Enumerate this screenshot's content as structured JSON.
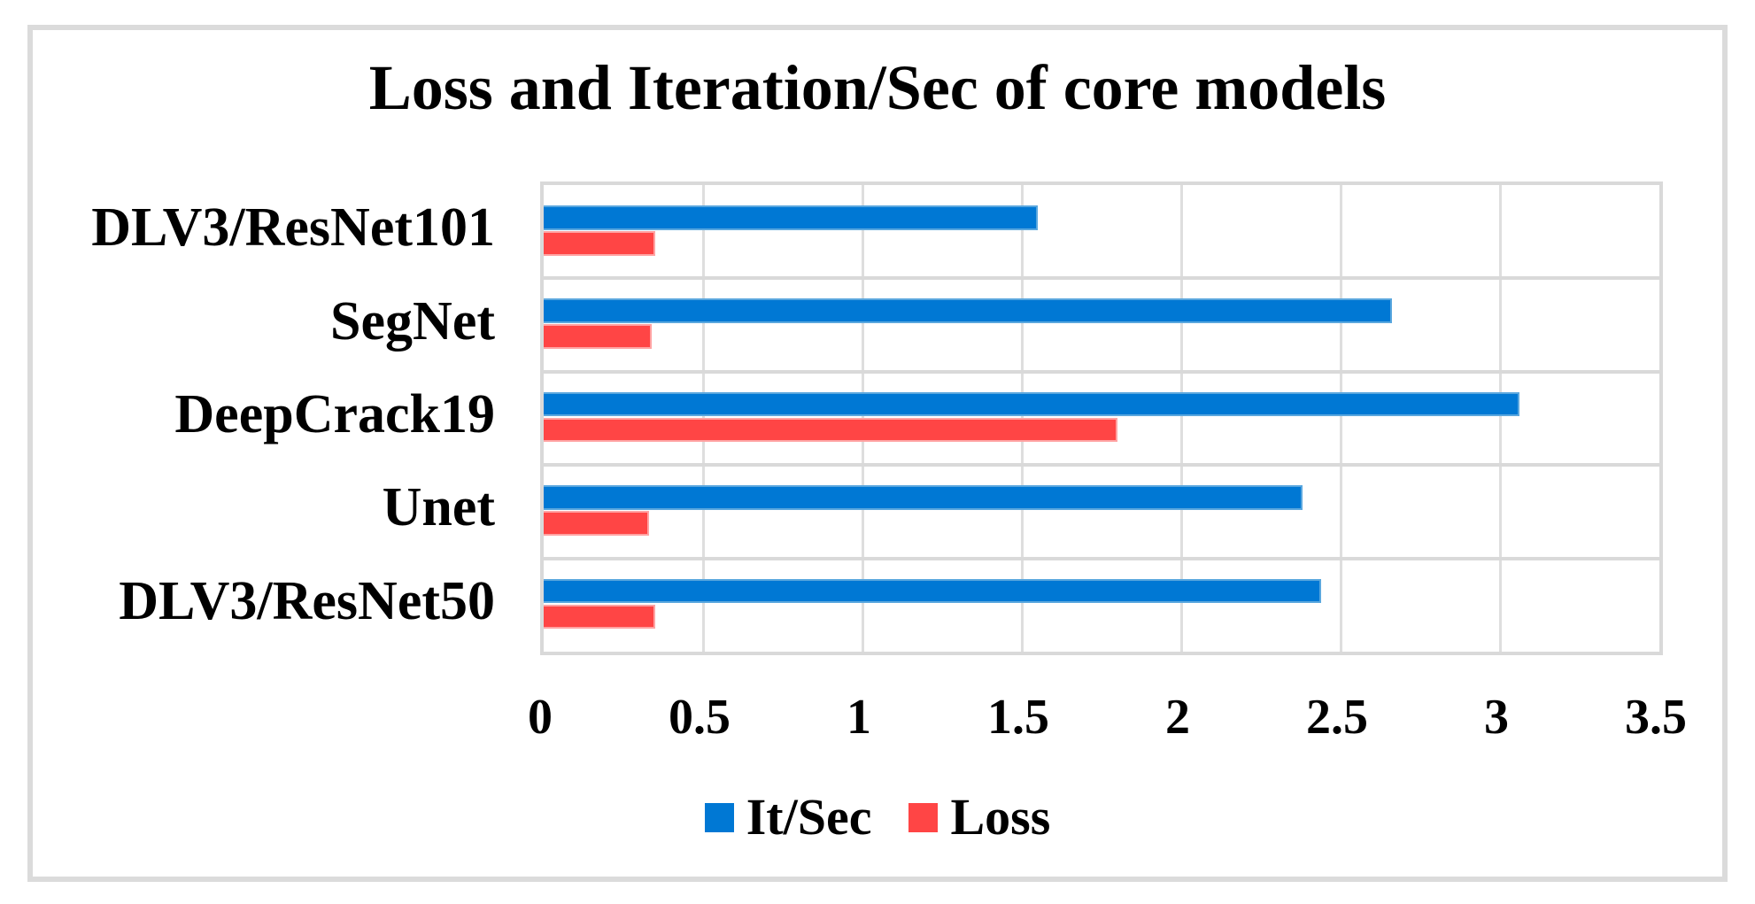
{
  "title": "Loss and Iteration/Sec of core models",
  "colors": {
    "itsec_bar": "#0078d4",
    "loss_bar": "#ff4545",
    "gridline": "#dedede",
    "plot_border": "#d9d9d9",
    "figure_border": "#dbdbdb",
    "text": "#000000"
  },
  "legend": {
    "items": [
      {
        "label": "It/Sec",
        "color": "#0078d4"
      },
      {
        "label": "Loss",
        "color": "#ff4545"
      }
    ]
  },
  "chart_data": {
    "type": "bar",
    "orientation": "horizontal",
    "title": "Loss and Iteration/Sec of core models",
    "categories": [
      "DLV3/ResNet101",
      "SegNet",
      "DeepCrack19",
      "Unet",
      "DLV3/ResNet50"
    ],
    "series": [
      {
        "name": "It/Sec",
        "color": "#0078d4",
        "values": [
          1.55,
          2.66,
          3.06,
          2.38,
          2.44
        ]
      },
      {
        "name": "Loss",
        "color": "#ff4545",
        "values": [
          0.35,
          0.34,
          1.8,
          0.33,
          0.35
        ]
      }
    ],
    "xlabel": "",
    "ylabel": "",
    "xlim": [
      0,
      3.5
    ],
    "xticks": [
      0,
      0.5,
      1,
      1.5,
      2,
      2.5,
      3,
      3.5
    ],
    "xtick_labels": [
      "0",
      "0.5",
      "1",
      "1.5",
      "2",
      "2.5",
      "3",
      "3.5"
    ],
    "grid": true,
    "legend_position": "bottom"
  }
}
